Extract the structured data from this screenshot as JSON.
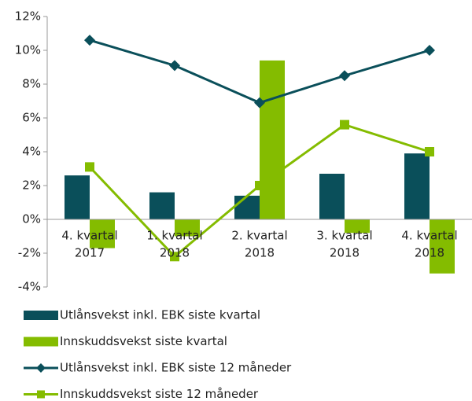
{
  "chart_data": {
    "type": "combo",
    "categories": [
      [
        "4. kvartal",
        "2017"
      ],
      [
        "1. kvartal",
        "2018"
      ],
      [
        "2. kvartal",
        "2018"
      ],
      [
        "3. kvartal",
        "2018"
      ],
      [
        "4. kvartal",
        "2018"
      ]
    ],
    "series": [
      {
        "name": "Utlånsvekst inkl. EBK siste kvartal",
        "type": "bar",
        "color": "#0a4f5a",
        "values": [
          2.6,
          1.6,
          1.4,
          2.7,
          3.9
        ]
      },
      {
        "name": "Innskuddsvekst siste kvartal",
        "type": "bar",
        "color": "#84bc00",
        "values": [
          -1.7,
          -1.0,
          9.4,
          -0.8,
          -3.2
        ]
      },
      {
        "name": "Utlånsvekst inkl. EBK siste 12 måneder",
        "type": "line",
        "marker": "diamond",
        "color": "#0a4f5a",
        "values": [
          10.6,
          9.1,
          6.9,
          8.5,
          10.0
        ]
      },
      {
        "name": "Innskuddsvekst siste 12 måneder",
        "type": "line",
        "marker": "square",
        "color": "#84bc00",
        "values": [
          3.1,
          -2.2,
          2.0,
          5.6,
          4.0
        ]
      }
    ],
    "ylim": [
      -4,
      12
    ],
    "yticks": [
      {
        "value": -4,
        "label": "-4%"
      },
      {
        "value": -2,
        "label": "-2%"
      },
      {
        "value": 0,
        "label": "0%"
      },
      {
        "value": 2,
        "label": "2%"
      },
      {
        "value": 4,
        "label": "4%"
      },
      {
        "value": 6,
        "label": "6%"
      },
      {
        "value": 8,
        "label": "8%"
      },
      {
        "value": 10,
        "label": "10%"
      },
      {
        "value": 12,
        "label": "12%"
      }
    ],
    "grid": false
  }
}
